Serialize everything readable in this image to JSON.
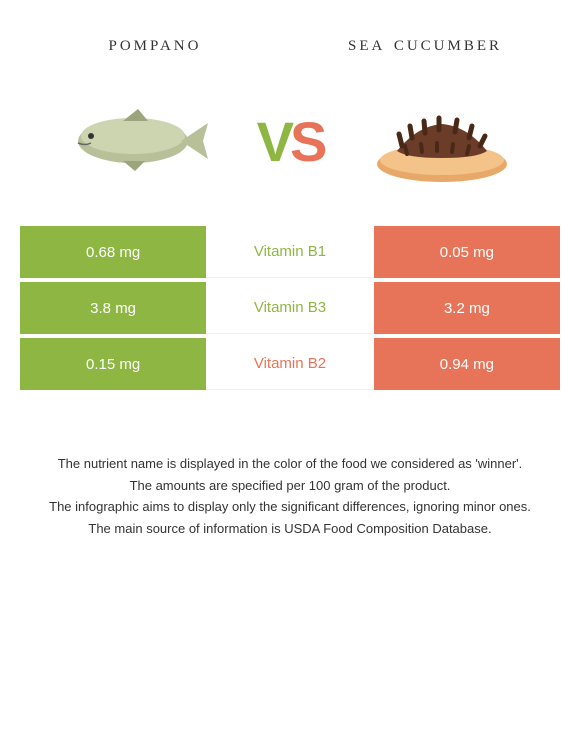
{
  "left": {
    "title": "pompano",
    "color": "#8db742"
  },
  "right": {
    "title": "sea cucumber",
    "color": "#e77459"
  },
  "vs": {
    "v": "V",
    "s": "S"
  },
  "rows": [
    {
      "left": "0.68 mg",
      "mid": "Vitamin B1",
      "right": "0.05 mg",
      "winner": "left"
    },
    {
      "left": "3.8 mg",
      "mid": "Vitamin B3",
      "right": "3.2 mg",
      "winner": "left"
    },
    {
      "left": "0.15 mg",
      "mid": "Vitamin B2",
      "right": "0.94 mg",
      "winner": "right"
    }
  ],
  "footer": [
    "The nutrient name is displayed in the color of the food we considered as 'winner'.",
    "The amounts are specified per 100 gram of the product.",
    "The infographic aims to display only the significant differences, ignoring minor ones.",
    "The main source of information is USDA Food Composition Database."
  ]
}
